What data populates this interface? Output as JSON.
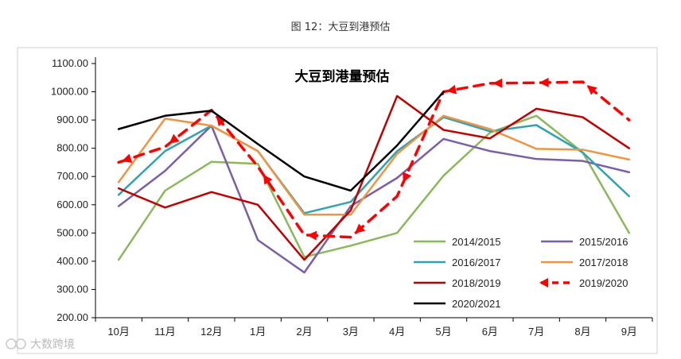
{
  "figure": {
    "caption": "图 12：大豆到港预估",
    "watermark": "大数跨境"
  },
  "chart_data": {
    "type": "line",
    "title": "大豆到港量预估",
    "xlabel": "",
    "ylabel": "",
    "categories": [
      "10月",
      "11月",
      "12月",
      "1月",
      "2月",
      "3月",
      "4月",
      "5月",
      "6月",
      "7月",
      "8月",
      "9月"
    ],
    "ylim": [
      200,
      1100
    ],
    "yticks": [
      "200.00",
      "300.00",
      "400.00",
      "500.00",
      "600.00",
      "700.00",
      "800.00",
      "900.00",
      "1000.00",
      "1100.00"
    ],
    "grid": false,
    "legend_position": "bottom-right",
    "series": [
      {
        "name": "2014/2015",
        "color": "#8cb85c",
        "dashed": false,
        "values": [
          405,
          650,
          752,
          745,
          415,
          455,
          500,
          703,
          855,
          915,
          785,
          500
        ]
      },
      {
        "name": "2015/2016",
        "color": "#7b5ea8",
        "dashed": false,
        "values": [
          595,
          720,
          880,
          475,
          360,
          595,
          695,
          833,
          790,
          762,
          755,
          715
        ]
      },
      {
        "name": "2016/2017",
        "color": "#2fa3b0",
        "dashed": false,
        "values": [
          635,
          790,
          880,
          790,
          570,
          610,
          790,
          910,
          860,
          882,
          785,
          630
        ]
      },
      {
        "name": "2017/2018",
        "color": "#ee9444",
        "dashed": false,
        "values": [
          680,
          905,
          880,
          790,
          565,
          565,
          780,
          915,
          868,
          798,
          795,
          760
        ]
      },
      {
        "name": "2018/2019",
        "color": "#c00000",
        "dashed": false,
        "values": [
          658,
          590,
          645,
          600,
          405,
          580,
          985,
          865,
          835,
          940,
          910,
          800
        ]
      },
      {
        "name": "2019/2020",
        "color": "#ff0000",
        "dashed": true,
        "values": [
          750,
          805,
          935,
          735,
          493,
          485,
          630,
          1000,
          1030,
          1032,
          1035,
          900
        ]
      },
      {
        "name": "2020/2021",
        "color": "#000000",
        "dashed": false,
        "values": [
          868,
          915,
          933,
          815,
          700,
          650,
          810,
          1000,
          null,
          null,
          null,
          null
        ]
      }
    ]
  }
}
